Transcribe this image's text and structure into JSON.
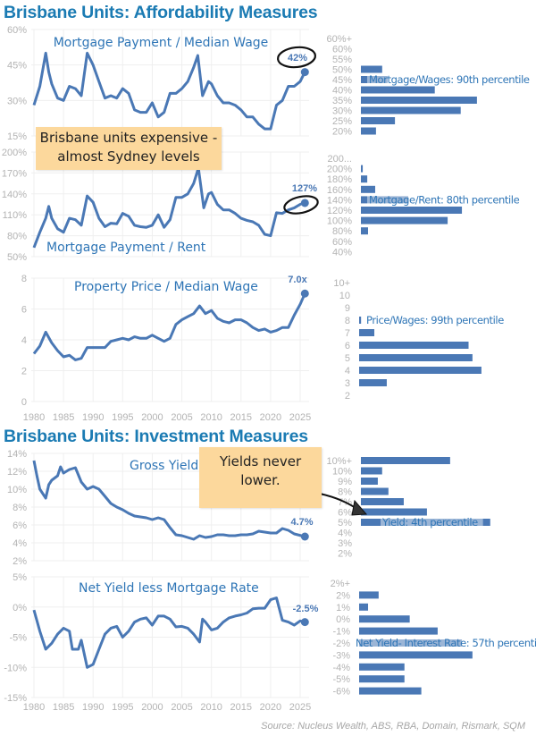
{
  "titles": {
    "affordability": "Brisbane Units: Affordability Measures",
    "investment": "Brisbane Units: Investment Measures"
  },
  "notes": {
    "expensive": [
      "Brisbane units expensive -",
      "almost Sydney levels"
    ],
    "yields": [
      "Yields never",
      "lower."
    ]
  },
  "source": "Source: Nucleus Wealth, ABS, RBA, Domain, Rismark, SQM",
  "colors": {
    "line": "#4a78b5",
    "title": "#1b7bb3",
    "label": "#2e75b6",
    "note": "#fcd89c",
    "axis_text": "#b3b3b3",
    "grid": "#efefef"
  },
  "chart_data": [
    {
      "type": "line",
      "title": "Mortgage Payment / Median Wage",
      "ylim": [
        15,
        60
      ],
      "yticks": [
        "60%",
        "45%",
        "30%",
        "15%"
      ],
      "ytick_values": [
        60,
        45,
        30,
        15
      ],
      "xlim": [
        1980,
        2026
      ],
      "grid": true,
      "x": [
        1980,
        1981,
        1982,
        1982.5,
        1983,
        1984,
        1985,
        1986,
        1987,
        1988,
        1989,
        1990,
        1991,
        1992,
        1993,
        1994,
        1995,
        1996,
        1997,
        1998,
        1999,
        2000,
        2001,
        2002,
        2003,
        2004,
        2005,
        2006,
        2007,
        2007.7,
        2008.5,
        2009.5,
        2010,
        2011,
        2012,
        2013,
        2014,
        2015,
        2016,
        2017,
        2018,
        2019,
        2020,
        2021,
        2022,
        2023,
        2024,
        2025,
        2025.8
      ],
      "y": [
        28,
        36,
        50,
        42,
        37,
        31,
        30,
        36,
        35,
        32,
        50,
        45,
        38,
        31,
        32,
        31,
        35,
        33,
        26,
        25,
        25,
        29,
        23,
        25,
        33,
        33,
        35,
        38,
        44,
        49,
        32,
        38,
        37,
        32,
        29,
        29,
        28,
        26,
        23,
        23,
        20,
        18,
        18,
        28,
        30,
        36,
        36,
        38,
        42
      ],
      "end_label": "42%",
      "histogram": {
        "type": "bar",
        "orientation": "horizontal",
        "categories": [
          "60%+",
          "60%",
          "55%",
          "50%",
          "45%",
          "40%",
          "35%",
          "30%",
          "25%",
          "20%"
        ],
        "values": [
          0,
          0,
          0,
          5.5,
          6.9,
          19.1,
          30.0,
          25.8,
          8.8,
          3.9
        ],
        "annotation": "Mortgage/Wages: 90th percentile"
      }
    },
    {
      "type": "line",
      "title": "Mortgage Payment / Rent",
      "ylim": [
        50,
        200
      ],
      "yticks": [
        "200%",
        "170%",
        "140%",
        "110%",
        "80%",
        "50%"
      ],
      "ytick_values": [
        200,
        170,
        140,
        110,
        80,
        50
      ],
      "xlim": [
        1980,
        2026
      ],
      "grid": true,
      "x": [
        1980,
        1981,
        1982,
        1982.5,
        1983,
        1984,
        1985,
        1986,
        1987,
        1988,
        1989,
        1990,
        1991,
        1992,
        1993,
        1994,
        1995,
        1996,
        1997,
        1998,
        1999,
        2000,
        2001,
        2002,
        2003,
        2004,
        2005,
        2006,
        2007,
        2007.8,
        2008.7,
        2009.5,
        2010,
        2011,
        2012,
        2013,
        2014,
        2015,
        2016,
        2017,
        2018,
        2019,
        2020,
        2021,
        2022,
        2023,
        2024,
        2025,
        2025.8
      ],
      "y": [
        63,
        85,
        105,
        122,
        105,
        90,
        85,
        105,
        103,
        95,
        137,
        128,
        105,
        93,
        98,
        97,
        112,
        108,
        95,
        93,
        92,
        95,
        110,
        92,
        103,
        135,
        135,
        140,
        155,
        177,
        120,
        140,
        142,
        125,
        117,
        117,
        112,
        105,
        102,
        100,
        95,
        82,
        80,
        113,
        112,
        117,
        120,
        125,
        127
      ],
      "end_label": "127%",
      "histogram": {
        "type": "bar",
        "orientation": "horizontal",
        "categories": [
          "200...",
          "200%",
          "180%",
          "160%",
          "140%",
          "120%",
          "100%",
          "80%",
          "60%",
          "40%"
        ],
        "values": [
          0,
          0.7,
          2.4,
          5.4,
          17.9,
          38.2,
          32.8,
          2.7,
          0,
          0
        ],
        "annotation": "Mortgage/Rent: 80th percentile"
      }
    },
    {
      "type": "line",
      "title": "Property Price / Median Wage",
      "ylim": [
        0,
        8
      ],
      "yticks": [
        "8",
        "6",
        "4",
        "2",
        "0"
      ],
      "ytick_values": [
        8,
        6,
        4,
        2,
        0
      ],
      "xlim": [
        1980,
        2026
      ],
      "grid": true,
      "xticks": [
        "1980",
        "1985",
        "1990",
        "1995",
        "2000",
        "2005",
        "2010",
        "2015",
        "2020",
        "2025"
      ],
      "x": [
        1980,
        1981,
        1982,
        1983,
        1984,
        1985,
        1986,
        1987,
        1988,
        1989,
        1990,
        1991,
        1992,
        1993,
        1994,
        1995,
        1996,
        1997,
        1998,
        1999,
        2000,
        2001,
        2002,
        2003,
        2004,
        2005,
        2006,
        2007,
        2008,
        2009,
        2010,
        2011,
        2012,
        2013,
        2014,
        2015,
        2016,
        2017,
        2018,
        2019,
        2020,
        2021,
        2022,
        2023,
        2024,
        2025,
        2025.8
      ],
      "y": [
        3.1,
        3.6,
        4.5,
        3.8,
        3.3,
        2.9,
        3.0,
        2.7,
        2.8,
        3.5,
        3.5,
        3.5,
        3.5,
        3.9,
        4.0,
        4.1,
        4.0,
        4.2,
        4.1,
        4.1,
        4.3,
        4.1,
        3.9,
        4.1,
        5.0,
        5.3,
        5.5,
        5.7,
        6.2,
        5.7,
        5.9,
        5.4,
        5.2,
        5.1,
        5.3,
        5.3,
        5.1,
        4.8,
        4.6,
        4.7,
        4.5,
        4.6,
        4.8,
        4.8,
        5.6,
        6.3,
        7.0
      ],
      "end_label": "7.0x",
      "histogram": {
        "type": "bar",
        "orientation": "horizontal",
        "categories": [
          "10+",
          "10",
          "9",
          "8",
          "7",
          "6",
          "5",
          "4",
          "3",
          "2"
        ],
        "values": [
          0,
          0,
          0,
          0.5,
          3.9,
          28.1,
          29.1,
          31.4,
          7.1,
          0
        ],
        "annotation": "Price/Wages: 99th percentile"
      }
    },
    {
      "type": "line",
      "title": "Gross Yield",
      "ylim": [
        2,
        14
      ],
      "yticks": [
        "14%",
        "12%",
        "10%",
        "8%",
        "6%",
        "4%",
        "2%"
      ],
      "ytick_values": [
        14,
        12,
        10,
        8,
        6,
        4,
        2
      ],
      "xlim": [
        1980,
        2026
      ],
      "grid": true,
      "x": [
        1980,
        1980.5,
        1981,
        1982,
        1982.5,
        1983,
        1984,
        1984.5,
        1985,
        1986,
        1987,
        1988,
        1989,
        1990,
        1991,
        1992,
        1993,
        1994,
        1995,
        1996,
        1997,
        1998,
        1999,
        2000,
        2001,
        2002,
        2003,
        2004,
        2005,
        2006,
        2007,
        2008,
        2009,
        2010,
        2011,
        2012,
        2013,
        2014,
        2015,
        2016,
        2017,
        2018,
        2019,
        2020,
        2021,
        2022,
        2023,
        2024,
        2025.8
      ],
      "y": [
        13.2,
        11.5,
        10,
        9,
        10.5,
        11,
        11.5,
        12.5,
        11.8,
        12.2,
        12.4,
        10.8,
        10,
        10.3,
        10,
        9.2,
        8.4,
        8.0,
        7.7,
        7.3,
        7.0,
        6.9,
        6.8,
        6.6,
        6.8,
        6.6,
        5.7,
        4.9,
        4.8,
        4.6,
        4.4,
        4.8,
        4.6,
        4.7,
        4.9,
        4.9,
        4.8,
        4.8,
        4.9,
        4.9,
        5.0,
        5.3,
        5.2,
        5.1,
        5.1,
        5.6,
        5.4,
        5.0,
        4.7
      ],
      "end_label": "4.7%",
      "histogram": {
        "type": "bar",
        "orientation": "horizontal",
        "categories": [
          "10%+",
          "10%",
          "9%",
          "8%",
          "7%",
          "6%",
          "5%",
          "4%",
          "3%",
          "2%"
        ],
        "values": [
          22.7,
          5.4,
          4.3,
          7.0,
          10.9,
          16.8,
          32.9,
          0,
          0,
          0
        ],
        "annotation": "Yield: 4th percentile"
      }
    },
    {
      "type": "line",
      "title": "Net Yield less Mortgage Rate",
      "ylim": [
        -15,
        5
      ],
      "yticks": [
        "5%",
        "0%",
        "-5%",
        "-10%",
        "-15%"
      ],
      "ytick_values": [
        5,
        0,
        -5,
        -10,
        -15
      ],
      "xlim": [
        1980,
        2026
      ],
      "grid": true,
      "xticks": [
        "1980",
        "1985",
        "1990",
        "1995",
        "2000",
        "2005",
        "2010",
        "2015",
        "2020",
        "2025"
      ],
      "x": [
        1980,
        1981,
        1982,
        1983,
        1984,
        1985,
        1986,
        1986.5,
        1987.5,
        1988,
        1989,
        1990,
        1991,
        1992,
        1993,
        1994,
        1995,
        1996,
        1997,
        1998,
        1999,
        2000,
        2001,
        2002,
        2003,
        2004,
        2005,
        2006,
        2007,
        2008,
        2008.5,
        2009,
        2010,
        2011,
        2012,
        2013,
        2014,
        2015,
        2016,
        2017,
        2018,
        2019,
        2020,
        2021,
        2022,
        2023,
        2024,
        2025,
        2025.8
      ],
      "y": [
        -0.5,
        -4,
        -7,
        -6,
        -4.5,
        -3.5,
        -4,
        -7,
        -7,
        -5.5,
        -10,
        -9.5,
        -7,
        -4.5,
        -3.5,
        -3.2,
        -5,
        -4,
        -2.5,
        -2,
        -1.8,
        -3,
        -1.5,
        -1.5,
        -2,
        -3.3,
        -3.2,
        -3.5,
        -4.5,
        -5.8,
        -2,
        -2.5,
        -3.8,
        -3.5,
        -2.5,
        -1.8,
        -1.5,
        -1.3,
        -1,
        -0.3,
        -0.2,
        -0.2,
        1.2,
        1.5,
        -2.2,
        -2.5,
        -3,
        -2.3,
        -2.5
      ],
      "end_label": "-2.5%",
      "histogram": {
        "type": "bar",
        "orientation": "horizontal",
        "categories": [
          "2%+",
          "2%",
          "1%",
          "0%",
          "-1%",
          "-2%",
          "-3%",
          "-4%",
          "-5%",
          "-6%"
        ],
        "values": [
          0,
          3.7,
          1.7,
          9.6,
          14.9,
          19.5,
          21.5,
          8.6,
          8.6,
          11.8
        ],
        "annotation": "Net Yield- Interest Rate: 57th percentile"
      }
    }
  ]
}
